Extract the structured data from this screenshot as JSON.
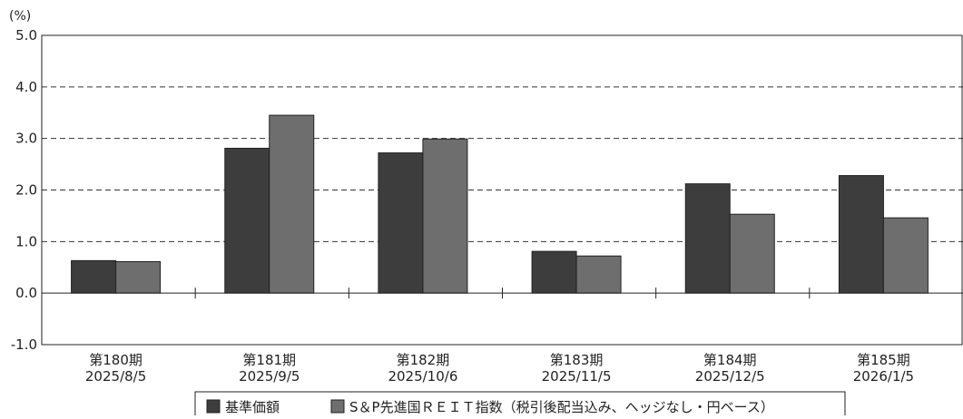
{
  "chart_data": {
    "type": "bar",
    "unit_label": "(%)",
    "categories": [
      {
        "period": "第180期",
        "date": "2025/8/5"
      },
      {
        "period": "第181期",
        "date": "2025/9/5"
      },
      {
        "period": "第182期",
        "date": "2025/10/6"
      },
      {
        "period": "第183期",
        "date": "2025/11/5"
      },
      {
        "period": "第184期",
        "date": "2025/12/5"
      },
      {
        "period": "第185期",
        "date": "2026/1/5"
      }
    ],
    "series": [
      {
        "name": "基準価額",
        "color": "#3d3d3d",
        "values": [
          0.63,
          2.81,
          2.72,
          0.81,
          2.12,
          2.28
        ]
      },
      {
        "name": "S＆P先進国ＲＥＩＴ指数（税引後配当込み、ヘッジなし・円ベース）",
        "color": "#6e6e6e",
        "values": [
          0.61,
          3.45,
          2.99,
          0.72,
          1.53,
          1.46
        ]
      }
    ],
    "ylim": [
      -1.0,
      5.0
    ],
    "yticks": [
      "5.0",
      "4.0",
      "3.0",
      "2.0",
      "1.0",
      "0.0",
      "-1.0"
    ],
    "ytick_values": [
      5,
      4,
      3,
      2,
      1,
      0,
      -1
    ],
    "grid": "dashed",
    "legend_position": "bottom"
  }
}
